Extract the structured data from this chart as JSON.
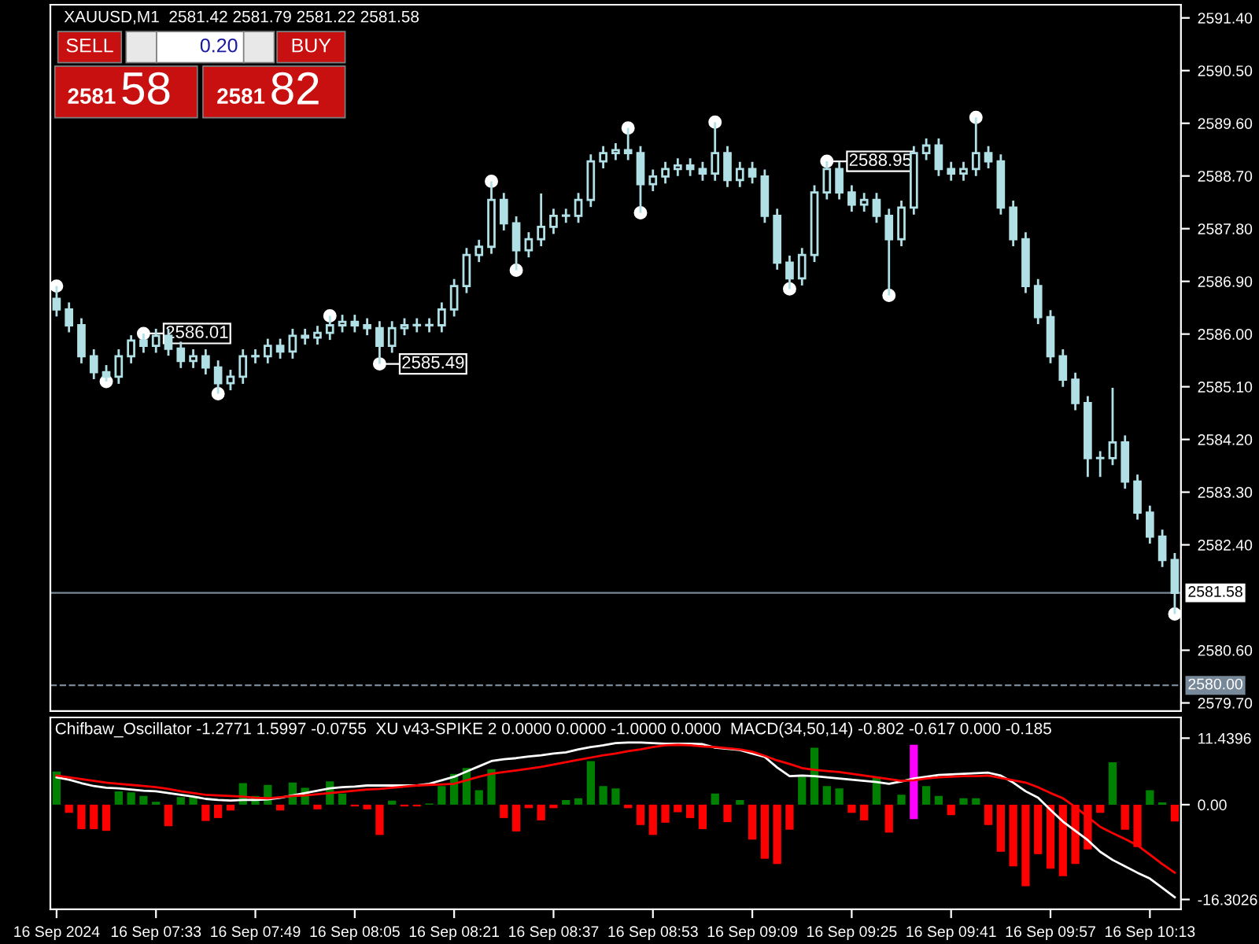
{
  "chart_data": [
    {
      "type": "candlestick",
      "title": "XAUUSD,M1  2581.42 2581.79 2581.22 2581.58",
      "color": "#b0e0e6",
      "categories": [
        null,
        null,
        null,
        null,
        null,
        null,
        null,
        null,
        null,
        null,
        null,
        null,
        null,
        null,
        null,
        null,
        null,
        null,
        null,
        null,
        null,
        null,
        null,
        null,
        null,
        null,
        null,
        null,
        null,
        null,
        null,
        null,
        null,
        null,
        null,
        null,
        null,
        null,
        null,
        null,
        null,
        null,
        null,
        null,
        null,
        null,
        null,
        null,
        null,
        null,
        null,
        null,
        null,
        null,
        null,
        null,
        null,
        null,
        null,
        null,
        null,
        null,
        null,
        null,
        null,
        null,
        null,
        null,
        null,
        null,
        null,
        null,
        null,
        null,
        null,
        null,
        null,
        null,
        null,
        null,
        null,
        null,
        null,
        null,
        null,
        null,
        null,
        null,
        null,
        null,
        null
      ],
      "ohlc": [
        [
          2586.6,
          2586.82,
          2586.3,
          2586.42
        ],
        [
          2586.42,
          2586.54,
          2586.03,
          2586.15
        ],
        [
          2586.15,
          2586.27,
          2585.5,
          2585.62
        ],
        [
          2585.62,
          2585.74,
          2585.23,
          2585.35
        ],
        [
          2585.35,
          2585.47,
          2585.19,
          2585.27
        ],
        [
          2585.27,
          2585.74,
          2585.15,
          2585.62
        ],
        [
          2585.62,
          2585.98,
          2585.5,
          2585.89
        ],
        [
          2585.89,
          2586.01,
          2585.68,
          2585.8
        ],
        [
          2585.8,
          2586.09,
          2585.68,
          2585.97
        ],
        [
          2585.97,
          2586.09,
          2585.63,
          2585.75
        ],
        [
          2585.75,
          2585.87,
          2585.42,
          2585.54
        ],
        [
          2585.54,
          2585.74,
          2585.42,
          2585.62
        ],
        [
          2585.62,
          2585.74,
          2585.31,
          2585.43
        ],
        [
          2585.43,
          2585.55,
          2584.98,
          2585.16
        ],
        [
          2585.16,
          2585.39,
          2585.04,
          2585.27
        ],
        [
          2585.27,
          2585.74,
          2585.15,
          2585.62
        ],
        [
          2585.62,
          2585.74,
          2585.5,
          2585.62
        ],
        [
          2585.62,
          2585.92,
          2585.5,
          2585.8
        ],
        [
          2585.8,
          2585.92,
          2585.58,
          2585.7
        ],
        [
          2585.7,
          2586.09,
          2585.58,
          2585.97
        ],
        [
          2585.97,
          2586.09,
          2585.82,
          2585.94
        ],
        [
          2585.94,
          2586.14,
          2585.82,
          2586.02
        ],
        [
          2586.02,
          2586.31,
          2585.9,
          2586.15
        ],
        [
          2586.15,
          2586.33,
          2586.03,
          2586.21
        ],
        [
          2586.21,
          2586.33,
          2586.03,
          2586.15
        ],
        [
          2586.15,
          2586.27,
          2585.98,
          2586.1
        ],
        [
          2586.1,
          2586.22,
          2585.49,
          2585.8
        ],
        [
          2585.8,
          2586.22,
          2585.68,
          2586.1
        ],
        [
          2586.1,
          2586.27,
          2585.98,
          2586.15
        ],
        [
          2586.15,
          2586.27,
          2586.03,
          2586.15
        ],
        [
          2586.15,
          2586.27,
          2586.03,
          2586.15
        ],
        [
          2586.15,
          2586.54,
          2586.03,
          2586.42
        ],
        [
          2586.42,
          2586.94,
          2586.3,
          2586.82
        ],
        [
          2586.82,
          2587.47,
          2586.7,
          2587.35
        ],
        [
          2587.35,
          2587.61,
          2587.23,
          2587.49
        ],
        [
          2587.49,
          2588.61,
          2587.37,
          2588.29
        ],
        [
          2588.29,
          2588.41,
          2587.77,
          2587.89
        ],
        [
          2587.89,
          2588.01,
          2587.09,
          2587.43
        ],
        [
          2587.43,
          2587.74,
          2587.31,
          2587.62
        ],
        [
          2587.62,
          2588.4,
          2587.5,
          2587.83
        ],
        [
          2587.83,
          2588.14,
          2587.71,
          2588.02
        ],
        [
          2588.02,
          2588.14,
          2587.9,
          2588.02
        ],
        [
          2588.02,
          2588.41,
          2587.9,
          2588.29
        ],
        [
          2588.29,
          2589.07,
          2588.17,
          2588.95
        ],
        [
          2588.95,
          2589.21,
          2588.83,
          2589.09
        ],
        [
          2589.09,
          2589.26,
          2588.97,
          2589.14
        ],
        [
          2589.14,
          2589.52,
          2588.97,
          2589.09
        ],
        [
          2589.09,
          2589.21,
          2588.07,
          2588.56
        ],
        [
          2588.56,
          2588.81,
          2588.44,
          2588.69
        ],
        [
          2588.69,
          2588.94,
          2588.57,
          2588.82
        ],
        [
          2588.82,
          2589.0,
          2588.7,
          2588.88
        ],
        [
          2588.88,
          2589.0,
          2588.7,
          2588.82
        ],
        [
          2588.82,
          2588.94,
          2588.62,
          2588.74
        ],
        [
          2588.74,
          2589.62,
          2588.62,
          2589.09
        ],
        [
          2589.09,
          2589.21,
          2588.51,
          2588.63
        ],
        [
          2588.63,
          2588.94,
          2588.51,
          2588.82
        ],
        [
          2588.82,
          2588.94,
          2588.57,
          2588.69
        ],
        [
          2588.69,
          2588.81,
          2587.9,
          2588.02
        ],
        [
          2588.02,
          2588.14,
          2587.1,
          2587.22
        ],
        [
          2587.22,
          2587.34,
          2586.77,
          2586.95
        ],
        [
          2586.95,
          2587.47,
          2586.83,
          2587.35
        ],
        [
          2587.35,
          2588.54,
          2587.23,
          2588.42
        ],
        [
          2588.42,
          2588.95,
          2588.3,
          2588.82
        ],
        [
          2588.82,
          2588.94,
          2588.3,
          2588.42
        ],
        [
          2588.42,
          2588.54,
          2588.09,
          2588.21
        ],
        [
          2588.21,
          2588.41,
          2588.09,
          2588.29
        ],
        [
          2588.29,
          2588.41,
          2587.9,
          2588.02
        ],
        [
          2588.02,
          2588.14,
          2586.66,
          2587.62
        ],
        [
          2587.62,
          2588.28,
          2587.5,
          2588.16
        ],
        [
          2588.16,
          2589.21,
          2588.04,
          2589.09
        ],
        [
          2589.09,
          2589.34,
          2588.97,
          2589.22
        ],
        [
          2589.22,
          2589.34,
          2588.7,
          2588.82
        ],
        [
          2588.82,
          2588.94,
          2588.62,
          2588.74
        ],
        [
          2588.74,
          2588.94,
          2588.62,
          2588.82
        ],
        [
          2588.82,
          2589.7,
          2588.7,
          2589.09
        ],
        [
          2589.09,
          2589.21,
          2588.83,
          2588.95
        ],
        [
          2588.95,
          2589.07,
          2588.04,
          2588.16
        ],
        [
          2588.16,
          2588.28,
          2587.5,
          2587.62
        ],
        [
          2587.62,
          2587.74,
          2586.7,
          2586.82
        ],
        [
          2586.82,
          2586.94,
          2586.17,
          2586.29
        ],
        [
          2586.29,
          2586.41,
          2585.5,
          2585.62
        ],
        [
          2585.62,
          2585.74,
          2585.1,
          2585.22
        ],
        [
          2585.22,
          2585.34,
          2584.7,
          2584.82
        ],
        [
          2584.82,
          2584.94,
          2583.56,
          2583.88
        ],
        [
          2583.88,
          2584.0,
          2583.56,
          2583.88
        ],
        [
          2583.88,
          2585.08,
          2583.76,
          2584.15
        ],
        [
          2584.15,
          2584.27,
          2583.36,
          2583.48
        ],
        [
          2583.48,
          2583.6,
          2582.83,
          2582.95
        ],
        [
          2582.95,
          2583.07,
          2582.42,
          2582.54
        ],
        [
          2582.54,
          2582.66,
          2582.02,
          2582.14
        ],
        [
          2582.14,
          2582.26,
          2581.22,
          2581.58
        ]
      ],
      "series": [
        {
          "type": "scatter",
          "color": "#ffffff",
          "marker": "circle",
          "values": [
            2586.82,
            null,
            null,
            null,
            2585.19,
            null,
            null,
            2586.01,
            null,
            null,
            null,
            null,
            null,
            2584.98,
            null,
            null,
            null,
            null,
            null,
            null,
            null,
            null,
            2586.31,
            null,
            null,
            null,
            2585.49,
            null,
            null,
            null,
            null,
            null,
            null,
            null,
            null,
            2588.61,
            null,
            2587.09,
            null,
            null,
            null,
            null,
            null,
            null,
            null,
            null,
            2589.52,
            2588.07,
            null,
            null,
            null,
            null,
            null,
            2589.62,
            null,
            null,
            null,
            null,
            null,
            2586.77,
            null,
            null,
            2588.95,
            null,
            null,
            null,
            null,
            2586.66,
            null,
            null,
            null,
            null,
            null,
            null,
            2589.7,
            null,
            null,
            null,
            null,
            null,
            null,
            null,
            null,
            null,
            null,
            null,
            null,
            null,
            null,
            null,
            2581.22
          ],
          "value_labels": [
            null,
            null,
            null,
            null,
            null,
            null,
            null,
            "2586.01",
            null,
            null,
            null,
            null,
            null,
            null,
            null,
            null,
            null,
            null,
            null,
            null,
            null,
            null,
            null,
            null,
            null,
            null,
            "2585.49",
            null,
            null,
            null,
            null,
            null,
            null,
            null,
            null,
            null,
            null,
            null,
            null,
            null,
            null,
            null,
            null,
            null,
            null,
            null,
            null,
            null,
            null,
            null,
            null,
            null,
            null,
            null,
            null,
            null,
            null,
            null,
            null,
            null,
            null,
            null,
            "2588.95",
            null,
            null,
            null,
            null,
            null,
            null,
            null,
            null,
            null,
            null,
            null,
            null,
            null,
            null,
            null,
            null,
            null,
            null,
            null,
            null,
            null,
            null,
            null,
            null,
            null,
            null,
            null,
            null
          ]
        }
      ],
      "annotations": [
        "SELL",
        "0.20",
        "BUY",
        "2581",
        "58",
        "2581",
        "82"
      ],
      "ref_lines": [
        {
          "axis": "y",
          "value": 2581.58,
          "label": "2581.58",
          "color": "#778899",
          "line_style": "solid"
        },
        {
          "axis": "y",
          "value": 2580.0,
          "label": "2580.00",
          "color": "#778899",
          "line_style": "dashed"
        }
      ],
      "ylim": [
        2579.56,
        2591.625
      ],
      "yticks": [
        {
          "value": 2579.7,
          "label": "2579.70"
        },
        {
          "value": 2580.6,
          "label": "2580.60"
        },
        {
          "value": 2582.4,
          "label": "2582.40"
        },
        {
          "value": 2583.3,
          "label": "2583.30"
        },
        {
          "value": 2584.2,
          "label": "2584.20"
        },
        {
          "value": 2585.1,
          "label": "2585.10"
        },
        {
          "value": 2586.0,
          "label": "2586.00"
        },
        {
          "value": 2586.9,
          "label": "2586.90"
        },
        {
          "value": 2587.8,
          "label": "2587.80"
        },
        {
          "value": 2588.7,
          "label": "2588.70"
        },
        {
          "value": 2589.6,
          "label": "2589.60"
        },
        {
          "value": 2590.5,
          "label": "2590.50"
        },
        {
          "value": 2591.4,
          "label": "2591.40"
        }
      ],
      "tick_labels": "y",
      "grid": false,
      "legend": false
    },
    {
      "type": "bar",
      "title": "Chifbaw_Oscillator -1.2771 1.5997 -0.0755  XU v43-SPIKE 2 0.0000 0.0000 -1.0000 0.0000  MACD(34,50,14) -0.802 -0.617 0.000 -0.185",
      "categories": [
        "16 Sep 2024",
        null,
        null,
        null,
        null,
        null,
        null,
        null,
        "16 Sep 07:33",
        null,
        null,
        null,
        null,
        null,
        null,
        null,
        "16 Sep 07:49",
        null,
        null,
        null,
        null,
        null,
        null,
        null,
        "16 Sep 08:05",
        null,
        null,
        null,
        null,
        null,
        null,
        null,
        "16 Sep 08:21",
        null,
        null,
        null,
        null,
        null,
        null,
        null,
        "16 Sep 08:37",
        null,
        null,
        null,
        null,
        null,
        null,
        null,
        "16 Sep 08:53",
        null,
        null,
        null,
        null,
        null,
        null,
        null,
        "16 Sep 09:09",
        null,
        null,
        null,
        null,
        null,
        null,
        null,
        "16 Sep 09:25",
        null,
        null,
        null,
        null,
        null,
        null,
        null,
        "16 Sep 09:41",
        null,
        null,
        null,
        null,
        null,
        null,
        null,
        "16 Sep 09:57",
        null,
        null,
        null,
        null,
        null,
        null,
        null,
        "16 Sep 10:13",
        null,
        null
      ],
      "series": [
        {
          "type": "bar",
          "values": [
            5.7,
            -1.4,
            -4.2,
            -4.2,
            -4.5,
            2.3,
            2.1,
            1.5,
            0.5,
            -3.7,
            1.3,
            1.3,
            -2.8,
            -2.3,
            -1.0,
            3.7,
            1.5,
            3.4,
            -1.0,
            3.8,
            2.9,
            -0.8,
            4.0,
            1.9,
            -0.3,
            -0.8,
            -5.2,
            0.7,
            -0.3,
            -0.3,
            0.2,
            3.2,
            5.3,
            6.3,
            2.5,
            6.1,
            -2.3,
            -4.6,
            -0.6,
            -2.7,
            -0.6,
            0.8,
            1.1,
            7.5,
            3.2,
            2.8,
            -0.6,
            -3.5,
            -5.2,
            -3.1,
            -1.3,
            -2.3,
            -4.2,
            1.9,
            -3.0,
            0.8,
            -6.0,
            -9.3,
            -10.2,
            -4.3,
            4.8,
            9.8,
            3.2,
            2.8,
            -1.4,
            -2.7,
            4.8,
            -4.8,
            1.7,
            null,
            3.2,
            1.5,
            -1.8,
            1.1,
            1.1,
            -3.5,
            -8.1,
            -10.6,
            -14.0,
            -8.5,
            -11.0,
            -12.3,
            -10.2,
            -7.7,
            -1.4,
            7.3,
            -4.3,
            -7.3,
            2.5,
            0.4,
            -2.9
          ],
          "colors": [
            "#008000",
            "#ff0000",
            "#ff0000",
            "#ff0000",
            "#ff0000",
            "#008000",
            "#008000",
            "#008000",
            "#008000",
            "#ff0000",
            "#008000",
            "#008000",
            "#ff0000",
            "#ff0000",
            "#ff0000",
            "#008000",
            "#008000",
            "#008000",
            "#ff0000",
            "#008000",
            "#008000",
            "#ff0000",
            "#008000",
            "#008000",
            "#ff0000",
            "#ff0000",
            "#ff0000",
            "#008000",
            "#ff0000",
            "#ff0000",
            "#008000",
            "#008000",
            "#008000",
            "#008000",
            "#008000",
            "#008000",
            "#ff0000",
            "#ff0000",
            "#ff0000",
            "#ff0000",
            "#ff0000",
            "#008000",
            "#008000",
            "#008000",
            "#008000",
            "#008000",
            "#ff0000",
            "#ff0000",
            "#ff0000",
            "#ff0000",
            "#ff0000",
            "#ff0000",
            "#ff0000",
            "#008000",
            "#ff0000",
            "#008000",
            "#ff0000",
            "#ff0000",
            "#ff0000",
            "#ff0000",
            "#008000",
            "#008000",
            "#008000",
            "#008000",
            "#ff0000",
            "#ff0000",
            "#008000",
            "#ff0000",
            "#008000",
            "#008000",
            "#008000",
            "#008000",
            "#ff0000",
            "#008000",
            "#008000",
            "#ff0000",
            "#ff0000",
            "#ff0000",
            "#ff0000",
            "#ff0000",
            "#ff0000",
            "#ff0000",
            "#ff0000",
            "#ff0000",
            "#ff0000",
            "#008000",
            "#ff0000",
            "#ff0000",
            "#008000",
            "#008000",
            "#ff0000"
          ]
        },
        {
          "type": "bar",
          "color": "#ff00ff",
          "values": [
            null,
            null,
            null,
            null,
            null,
            null,
            null,
            null,
            null,
            null,
            null,
            null,
            null,
            null,
            null,
            null,
            null,
            null,
            null,
            null,
            null,
            null,
            null,
            null,
            null,
            null,
            null,
            null,
            null,
            null,
            null,
            null,
            null,
            null,
            null,
            null,
            null,
            null,
            null,
            null,
            null,
            null,
            null,
            null,
            null,
            null,
            null,
            null,
            null,
            null,
            null,
            null,
            null,
            null,
            null,
            null,
            null,
            null,
            null,
            null,
            null,
            null,
            null,
            null,
            null,
            null,
            null,
            null,
            null,
            12.8,
            null,
            null,
            null,
            null,
            null,
            null,
            null,
            null,
            null,
            null,
            null,
            null,
            null,
            null,
            null,
            null,
            null,
            null,
            null,
            null,
            null
          ],
          "base": [
            null,
            null,
            null,
            null,
            null,
            null,
            null,
            null,
            null,
            null,
            null,
            null,
            null,
            null,
            null,
            null,
            null,
            null,
            null,
            null,
            null,
            null,
            null,
            null,
            null,
            null,
            null,
            null,
            null,
            null,
            null,
            null,
            null,
            null,
            null,
            null,
            null,
            null,
            null,
            null,
            null,
            null,
            null,
            null,
            null,
            null,
            null,
            null,
            null,
            null,
            null,
            null,
            null,
            null,
            null,
            null,
            null,
            null,
            null,
            null,
            null,
            null,
            null,
            null,
            null,
            null,
            null,
            null,
            null,
            -2.5,
            null,
            null,
            null,
            null,
            null,
            null,
            null,
            null,
            null,
            null,
            null,
            null,
            null,
            null,
            null,
            null,
            null,
            null,
            null,
            null,
            null
          ]
        },
        {
          "type": "line",
          "color": "#ffffff",
          "values": [
            4.7,
            4.3,
            3.7,
            3.2,
            2.9,
            2.8,
            2.6,
            2.4,
            2.3,
            2.0,
            1.7,
            1.4,
            1.0,
            0.8,
            0.7,
            0.8,
            0.8,
            0.9,
            1.2,
            1.6,
            2.0,
            2.4,
            2.8,
            3.0,
            3.1,
            3.3,
            3.3,
            3.3,
            3.3,
            3.3,
            3.6,
            4.2,
            4.8,
            5.7,
            6.6,
            7.5,
            7.8,
            8.0,
            8.3,
            8.5,
            8.8,
            9.0,
            9.5,
            9.9,
            10.2,
            10.6,
            10.7,
            10.7,
            10.6,
            10.5,
            10.5,
            10.5,
            10.4,
            9.8,
            9.6,
            9.4,
            8.8,
            8.2,
            6.4,
            4.9,
            5.0,
            4.9,
            4.7,
            4.5,
            4.3,
            4.1,
            3.9,
            3.6,
            4.0,
            4.5,
            4.8,
            5.1,
            5.2,
            5.3,
            5.4,
            5.5,
            5.0,
            3.8,
            2.3,
            1.2,
            -0.9,
            -2.9,
            -4.5,
            -6.1,
            -8.1,
            -9.5,
            -10.6,
            -11.7,
            -12.7,
            -14.3,
            -15.9
          ]
        },
        {
          "type": "line",
          "color": "#ff0000",
          "values": [
            5.0,
            4.7,
            4.4,
            4.1,
            3.8,
            3.6,
            3.4,
            3.2,
            3.0,
            2.7,
            2.3,
            2.0,
            1.7,
            1.6,
            1.5,
            1.4,
            1.2,
            1.1,
            1.3,
            1.5,
            1.6,
            1.8,
            2.0,
            2.2,
            2.4,
            2.6,
            2.7,
            2.9,
            3.1,
            3.3,
            3.4,
            3.5,
            3.6,
            4.2,
            4.8,
            5.3,
            5.6,
            5.9,
            6.2,
            6.5,
            6.9,
            7.3,
            7.7,
            8.1,
            8.5,
            8.8,
            9.2,
            9.5,
            9.9,
            10.2,
            10.3,
            10.2,
            10.0,
            9.9,
            9.7,
            9.5,
            9.1,
            8.4,
            7.6,
            7.0,
            6.3,
            6.0,
            5.8,
            5.6,
            5.3,
            5.0,
            4.7,
            4.4,
            4.1,
            4.2,
            4.5,
            4.7,
            4.8,
            4.9,
            4.9,
            5.0,
            4.6,
            4.2,
            3.8,
            3.0,
            2.0,
            1.1,
            -0.4,
            -2.1,
            -3.8,
            -4.9,
            -5.9,
            -7.0,
            -8.6,
            -10.2,
            -11.7
          ]
        }
      ],
      "ylim": [
        -18,
        15
      ],
      "yticks": [
        11.4396,
        {
          "value": 0,
          "label": "0.00"
        },
        -16.3026
      ],
      "grid": false,
      "legend": false
    }
  ]
}
